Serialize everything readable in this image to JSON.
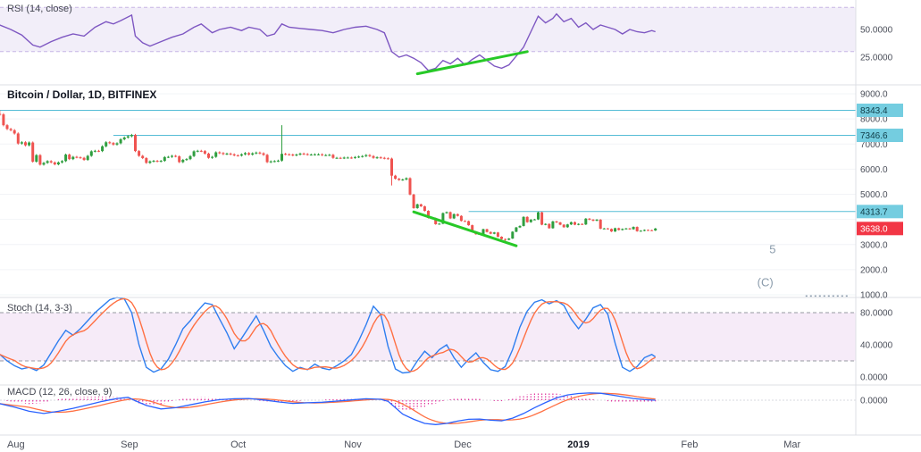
{
  "titles": {
    "rsi": "RSI (14, close)",
    "main": "Bitcoin / Dollar, 1D, BITFINEX",
    "stoch": "Stoch (14, 3-3)",
    "macd": "MACD (12, 26, close, 9)"
  },
  "colors": {
    "up": "#2f9e3f",
    "down": "#ef5350",
    "rsi_line": "#7e57c2",
    "rsi_band_fill": "rgba(126,87,194,0.10)",
    "rsi_band_line": "#c7b6e6",
    "stoch_k": "#2e7ef0",
    "stoch_d": "#ff7043",
    "stoch_band_fill": "rgba(186,104,200,0.13)",
    "stoch_band_line": "#9598a1",
    "macd_line": "#2962ff",
    "macd_signal": "#ff7043",
    "macd_hist": "#e0359e",
    "level_line": "#56bdd6",
    "level_badge_bg": "#74cde0",
    "level_badge_fg": "#0e3b46",
    "last_badge_bg": "#f23645",
    "last_badge_fg": "#ffffff",
    "trend_green": "#27c927",
    "axis_text": "#4a4e59",
    "axis_bold": "#131722",
    "separator": "#dcdfe4",
    "grid": "#f2f4f7",
    "wave": "#8a9bab",
    "zero_line": "#d7dadf"
  },
  "chart_data": {
    "type": "multi-pane-financial",
    "symbol": "Bitcoin / Dollar",
    "interval": "1D",
    "exchange": "BITFINEX",
    "x_axis": {
      "labels": [
        {
          "text": "Aug",
          "day": 2,
          "emphasis": false
        },
        {
          "text": "Sep",
          "day": 33,
          "emphasis": false
        },
        {
          "text": "Oct",
          "day": 63,
          "emphasis": false
        },
        {
          "text": "Nov",
          "day": 94,
          "emphasis": false
        },
        {
          "text": "Dec",
          "day": 124,
          "emphasis": false
        },
        {
          "text": "2019",
          "day": 155,
          "emphasis": true
        },
        {
          "text": "Feb",
          "day": 186,
          "emphasis": false
        },
        {
          "text": "Mar",
          "day": 214,
          "emphasis": false
        }
      ]
    },
    "rsi": {
      "type": "line",
      "band": [
        30,
        70
      ],
      "y_ticks": [
        {
          "value": 50,
          "label": "50.0000"
        },
        {
          "value": 25,
          "label": "25.0000"
        }
      ],
      "points": [
        [
          0,
          54
        ],
        [
          3,
          50
        ],
        [
          6,
          45
        ],
        [
          9,
          36
        ],
        [
          11,
          34
        ],
        [
          14,
          39
        ],
        [
          17,
          43
        ],
        [
          20,
          46
        ],
        [
          23,
          44
        ],
        [
          26,
          52
        ],
        [
          29,
          57
        ],
        [
          31,
          55
        ],
        [
          33,
          58
        ],
        [
          36,
          63
        ],
        [
          37,
          44
        ],
        [
          39,
          38
        ],
        [
          41,
          35
        ],
        [
          44,
          39
        ],
        [
          47,
          43
        ],
        [
          50,
          46
        ],
        [
          53,
          52
        ],
        [
          55,
          55
        ],
        [
          58,
          47
        ],
        [
          60,
          50
        ],
        [
          63,
          52
        ],
        [
          66,
          49
        ],
        [
          68,
          52
        ],
        [
          71,
          50
        ],
        [
          73,
          44
        ],
        [
          75,
          46
        ],
        [
          77,
          55
        ],
        [
          79,
          52
        ],
        [
          82,
          51
        ],
        [
          85,
          50
        ],
        [
          88,
          49
        ],
        [
          91,
          47
        ],
        [
          94,
          50
        ],
        [
          97,
          52
        ],
        [
          100,
          53
        ],
        [
          103,
          50
        ],
        [
          105,
          47
        ],
        [
          107,
          30
        ],
        [
          109,
          25
        ],
        [
          111,
          27
        ],
        [
          113,
          24
        ],
        [
          115,
          20
        ],
        [
          117,
          13
        ],
        [
          119,
          15
        ],
        [
          121,
          22
        ],
        [
          123,
          19
        ],
        [
          125,
          24
        ],
        [
          127,
          18
        ],
        [
          129,
          23
        ],
        [
          131,
          27
        ],
        [
          133,
          22
        ],
        [
          135,
          17
        ],
        [
          137,
          15
        ],
        [
          139,
          18
        ],
        [
          141,
          26
        ],
        [
          143,
          34
        ],
        [
          145,
          48
        ],
        [
          147,
          62
        ],
        [
          149,
          56
        ],
        [
          151,
          60
        ],
        [
          152,
          64
        ],
        [
          154,
          57
        ],
        [
          156,
          60
        ],
        [
          158,
          52
        ],
        [
          160,
          56
        ],
        [
          162,
          50
        ],
        [
          164,
          54
        ],
        [
          166,
          52
        ],
        [
          168,
          50
        ],
        [
          170,
          46
        ],
        [
          172,
          50
        ],
        [
          174,
          48
        ],
        [
          176,
          47
        ],
        [
          178,
          49
        ],
        [
          179,
          48
        ]
      ],
      "trendline": {
        "from_day": 114,
        "from_value": 10,
        "to_day": 144,
        "to_value": 30
      }
    },
    "main": {
      "type": "candlestick",
      "y_ticks": [
        {
          "value": 9000,
          "label": "9000.0"
        },
        {
          "value": 8000,
          "label": "8000.0"
        },
        {
          "value": 7000,
          "label": "7000.0"
        },
        {
          "value": 6000,
          "label": "6000.0"
        },
        {
          "value": 5000,
          "label": "5000.0"
        },
        {
          "value": 3000,
          "label": "3000.0"
        },
        {
          "value": 2000,
          "label": "2000.0"
        },
        {
          "value": 1000,
          "label": "1000.0"
        }
      ],
      "grid_values": [
        9000,
        8000,
        7000,
        6000,
        5000,
        4000,
        3000,
        2000,
        1000
      ],
      "levels": [
        {
          "value": 8343.4,
          "label": "8343.4",
          "from_day": 0
        },
        {
          "value": 7346.6,
          "label": "7346.6",
          "from_day": 31
        },
        {
          "value": 4313.7,
          "label": "4313.7",
          "from_day": 128
        }
      ],
      "last_price": {
        "value": 3638.0,
        "label": "3638.0"
      },
      "first_open": 8200,
      "daily_closes": [
        8180,
        7750,
        7600,
        7550,
        7420,
        7020,
        7070,
        6950,
        7060,
        6300,
        6560,
        6180,
        6250,
        6320,
        6270,
        6190,
        6270,
        6320,
        6580,
        6400,
        6490,
        6470,
        6450,
        6370,
        6530,
        6710,
        6730,
        6720,
        6910,
        7070,
        7040,
        6980,
        7030,
        7190,
        7260,
        7310,
        7360,
        6720,
        6530,
        6440,
        6250,
        6310,
        6330,
        6310,
        6330,
        6480,
        6490,
        6530,
        6510,
        6280,
        6370,
        6400,
        6520,
        6710,
        6730,
        6720,
        6620,
        6450,
        6490,
        6670,
        6640,
        6600,
        6620,
        6590,
        6550,
        6540,
        6590,
        6640,
        6580,
        6630,
        6660,
        6630,
        6570,
        6280,
        6310,
        6320,
        6340,
        6610,
        6590,
        6580,
        6550,
        6580,
        6620,
        6600,
        6580,
        6580,
        6590,
        6590,
        6560,
        6560,
        6570,
        6450,
        6450,
        6440,
        6460,
        6460,
        6450,
        6480,
        6500,
        6520,
        6560,
        6520,
        6450,
        6470,
        6450,
        6430,
        6420,
        5740,
        5620,
        5570,
        5590,
        5640,
        4990,
        4450,
        4600,
        4520,
        4340,
        4060,
        4050,
        3810,
        3830,
        4250,
        4290,
        4040,
        4210,
        4140,
        3940,
        3930,
        3770,
        3520,
        3410,
        3420,
        3610,
        3500,
        3430,
        3480,
        3310,
        3220,
        3190,
        3240,
        3510,
        3680,
        3740,
        4100,
        3890,
        3990,
        4000,
        4280,
        3790,
        3820,
        3650,
        3920,
        3880,
        3790,
        3690,
        3800,
        3890,
        3790,
        3820,
        3800,
        4030,
        3990,
        3950,
        3990,
        3630,
        3640,
        3620,
        3520,
        3650,
        3580,
        3620,
        3640,
        3610,
        3700,
        3530,
        3550,
        3580,
        3570,
        3560,
        3638
      ],
      "overrides": {
        "0": {
          "high": 8343.4
        },
        "77": {
          "high": 7750
        },
        "107": {
          "low": 5350
        },
        "138": {
          "low": 3128
        }
      },
      "trendline": {
        "from_day": 113,
        "from_value": 4300,
        "to_day": 141,
        "to_value": 2950
      },
      "wave_labels": [
        {
          "text": "5",
          "day": 211,
          "value": 2650
        },
        {
          "text": "(C)",
          "day": 209,
          "value": 1330
        }
      ],
      "dotted_tail": {
        "from_day": 220,
        "to_day": 232,
        "value": 950
      }
    },
    "stoch": {
      "type": "double-line",
      "band": [
        20,
        80
      ],
      "y_ticks": [
        {
          "value": 80,
          "label": "80.0000"
        },
        {
          "value": 40,
          "label": "40.0000"
        },
        {
          "value": 0,
          "label": "0.0000"
        }
      ],
      "k_points": [
        [
          0,
          28
        ],
        [
          2,
          20
        ],
        [
          4,
          14
        ],
        [
          6,
          10
        ],
        [
          8,
          12
        ],
        [
          10,
          8
        ],
        [
          12,
          15
        ],
        [
          14,
          30
        ],
        [
          16,
          45
        ],
        [
          18,
          58
        ],
        [
          20,
          52
        ],
        [
          22,
          60
        ],
        [
          24,
          70
        ],
        [
          26,
          80
        ],
        [
          28,
          88
        ],
        [
          30,
          96
        ],
        [
          32,
          99
        ],
        [
          34,
          97
        ],
        [
          36,
          80
        ],
        [
          38,
          40
        ],
        [
          40,
          12
        ],
        [
          42,
          6
        ],
        [
          44,
          10
        ],
        [
          46,
          22
        ],
        [
          48,
          40
        ],
        [
          50,
          60
        ],
        [
          52,
          70
        ],
        [
          54,
          82
        ],
        [
          56,
          92
        ],
        [
          58,
          90
        ],
        [
          60,
          72
        ],
        [
          62,
          55
        ],
        [
          64,
          35
        ],
        [
          66,
          48
        ],
        [
          68,
          62
        ],
        [
          70,
          76
        ],
        [
          72,
          58
        ],
        [
          74,
          38
        ],
        [
          76,
          25
        ],
        [
          78,
          14
        ],
        [
          80,
          7
        ],
        [
          82,
          12
        ],
        [
          84,
          9
        ],
        [
          86,
          16
        ],
        [
          88,
          11
        ],
        [
          90,
          9
        ],
        [
          92,
          14
        ],
        [
          94,
          20
        ],
        [
          96,
          28
        ],
        [
          98,
          45
        ],
        [
          100,
          65
        ],
        [
          102,
          88
        ],
        [
          104,
          78
        ],
        [
          106,
          38
        ],
        [
          108,
          10
        ],
        [
          110,
          5
        ],
        [
          112,
          6
        ],
        [
          114,
          20
        ],
        [
          116,
          32
        ],
        [
          118,
          24
        ],
        [
          120,
          34
        ],
        [
          122,
          40
        ],
        [
          124,
          24
        ],
        [
          126,
          12
        ],
        [
          128,
          22
        ],
        [
          130,
          30
        ],
        [
          132,
          18
        ],
        [
          134,
          9
        ],
        [
          136,
          7
        ],
        [
          138,
          13
        ],
        [
          140,
          34
        ],
        [
          142,
          62
        ],
        [
          144,
          82
        ],
        [
          146,
          93
        ],
        [
          148,
          96
        ],
        [
          150,
          91
        ],
        [
          152,
          95
        ],
        [
          154,
          89
        ],
        [
          156,
          72
        ],
        [
          158,
          60
        ],
        [
          160,
          72
        ],
        [
          162,
          86
        ],
        [
          164,
          90
        ],
        [
          166,
          78
        ],
        [
          168,
          42
        ],
        [
          170,
          12
        ],
        [
          172,
          7
        ],
        [
          174,
          13
        ],
        [
          176,
          24
        ],
        [
          178,
          28
        ],
        [
          179,
          25
        ]
      ],
      "d_note": "%D rendered as 5-period SMA of %K"
    },
    "macd": {
      "type": "macd",
      "y_ticks": [
        {
          "value": 0,
          "label": "0.0000"
        }
      ],
      "macd_points": [
        [
          0,
          -60
        ],
        [
          4,
          -120
        ],
        [
          8,
          -190
        ],
        [
          12,
          -230
        ],
        [
          16,
          -190
        ],
        [
          20,
          -140
        ],
        [
          24,
          -80
        ],
        [
          28,
          -20
        ],
        [
          32,
          30
        ],
        [
          35,
          50
        ],
        [
          37,
          -10
        ],
        [
          40,
          -90
        ],
        [
          44,
          -150
        ],
        [
          48,
          -130
        ],
        [
          52,
          -80
        ],
        [
          56,
          -30
        ],
        [
          60,
          10
        ],
        [
          64,
          25
        ],
        [
          68,
          30
        ],
        [
          72,
          5
        ],
        [
          76,
          -30
        ],
        [
          80,
          -55
        ],
        [
          84,
          -45
        ],
        [
          88,
          -35
        ],
        [
          92,
          -15
        ],
        [
          96,
          5
        ],
        [
          100,
          25
        ],
        [
          104,
          15
        ],
        [
          106,
          -20
        ],
        [
          108,
          -130
        ],
        [
          110,
          -240
        ],
        [
          113,
          -330
        ],
        [
          116,
          -400
        ],
        [
          119,
          -420
        ],
        [
          122,
          -400
        ],
        [
          125,
          -360
        ],
        [
          128,
          -330
        ],
        [
          131,
          -325
        ],
        [
          134,
          -345
        ],
        [
          137,
          -355
        ],
        [
          140,
          -310
        ],
        [
          143,
          -230
        ],
        [
          146,
          -130
        ],
        [
          149,
          -40
        ],
        [
          152,
          40
        ],
        [
          155,
          90
        ],
        [
          158,
          115
        ],
        [
          161,
          125
        ],
        [
          164,
          120
        ],
        [
          167,
          90
        ],
        [
          170,
          60
        ],
        [
          173,
          30
        ],
        [
          176,
          10
        ],
        [
          179,
          0
        ]
      ],
      "signal_note": "signal rendered as 9-period SMA of MACD line"
    }
  }
}
